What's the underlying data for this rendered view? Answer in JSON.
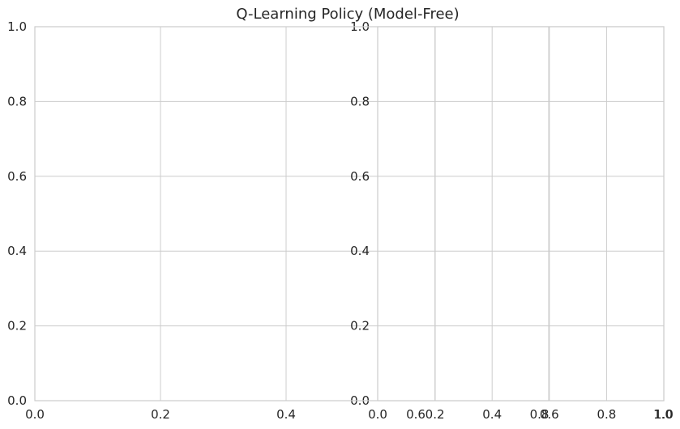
{
  "chart_data": [
    {
      "type": "line",
      "title": "Q-Learning Policy (Model-Free)",
      "xlabel": "",
      "ylabel": "",
      "xlim": [
        0,
        1
      ],
      "ylim": [
        0,
        1
      ],
      "x_ticks": [
        "0.0",
        "0.2",
        "0.4"
      ],
      "x_tick_values": [
        0.0,
        0.2,
        0.4
      ],
      "y_ticks": [
        "0.0",
        "0.2",
        "0.4",
        "0.6",
        "0.8",
        "1.0"
      ],
      "y_tick_values": [
        0.0,
        0.2,
        0.4,
        0.6,
        0.8,
        1.0
      ],
      "grid": true,
      "series": []
    },
    {
      "type": "line",
      "title": "",
      "xlabel": "",
      "ylabel": "",
      "xlim": [
        0,
        1
      ],
      "ylim": [
        0,
        1
      ],
      "x_ticks": [
        "0.0",
        "0.2",
        "0.4",
        "0.6",
        "0.8",
        "1.0"
      ],
      "x_tick_values": [
        0.0,
        0.2,
        0.4,
        0.6,
        0.8,
        1.0
      ],
      "y_ticks": [
        "0.0",
        "0.2",
        "0.4",
        "0.6",
        "0.8",
        "1.0"
      ],
      "y_tick_values": [
        0.0,
        0.2,
        0.4,
        0.6,
        0.8,
        1.0
      ],
      "grid": true,
      "series": []
    },
    {
      "type": "line",
      "title": "",
      "xlabel": "",
      "ylabel": "",
      "xlim": [
        0,
        1
      ],
      "ylim": [
        0,
        1
      ],
      "x_ticks": [
        "0.6",
        "0.8",
        "1.0"
      ],
      "x_tick_values": [
        0.6,
        0.8,
        1.0
      ],
      "grid": false,
      "series": []
    }
  ]
}
